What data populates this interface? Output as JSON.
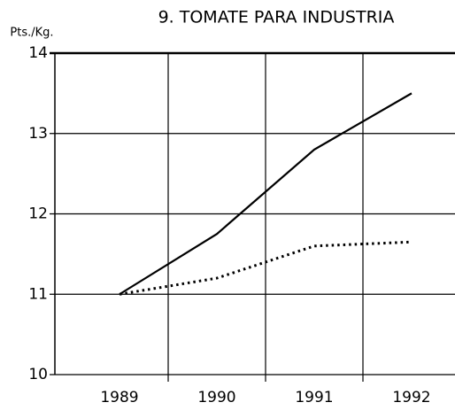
{
  "chart_data": {
    "type": "line",
    "title": "9. TOMATE PARA INDUSTRIA",
    "y_label": "Pts./Kg.",
    "categories": [
      "1989",
      "1990",
      "1991",
      "1992"
    ],
    "series": [
      {
        "color": "#000000",
        "style": "solid",
        "values": [
          11,
          11.75,
          12.8,
          13.5
        ]
      },
      {
        "color": "#000000",
        "style": "dotted",
        "values": [
          11,
          11.2,
          11.6,
          11.65
        ]
      }
    ],
    "ylim": [
      10,
      14
    ],
    "yticks": [
      10,
      11,
      12,
      13,
      14
    ],
    "grid": true
  }
}
